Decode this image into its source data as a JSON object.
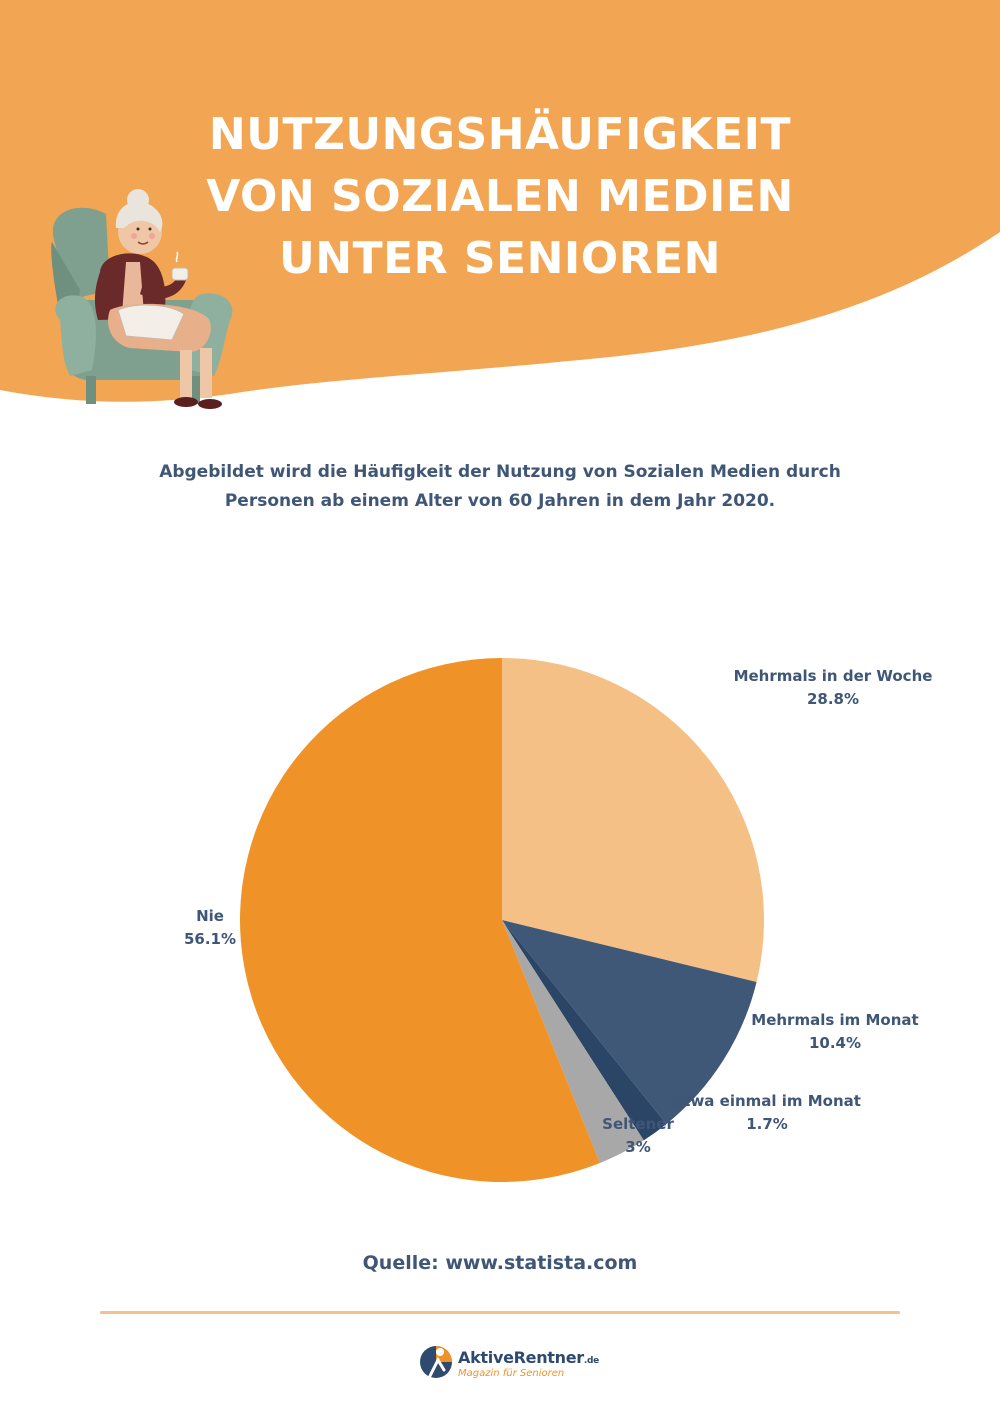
{
  "header": {
    "title_lines": [
      "NUTZUNGSHÄUFIGKEIT",
      "VON SOZIALEN MEDIEN",
      "UNTER SENIOREN"
    ],
    "background_color": "#f2a654"
  },
  "subtitle_lines": [
    "Abgebildet wird die Häufigkeit der Nutzung von Sozialen Medien durch",
    "Personen ab einem Alter von 60 Jahren in dem Jahr 2020."
  ],
  "chart_data": {
    "type": "pie",
    "title": "NUTZUNGSHÄUFIGKEIT VON SOZIALEN MEDIEN UNTER SENIOREN",
    "slices": [
      {
        "label": "Mehrmals in der Woche",
        "value": 28.8,
        "value_label": "28.8%",
        "color": "#f5c085"
      },
      {
        "label": "Mehrmals im Monat",
        "value": 10.4,
        "value_label": "10.4%",
        "color": "#3f5877"
      },
      {
        "label": "Etwa einmal im Monat",
        "value": 1.7,
        "value_label": "1.7%",
        "color": "#2b4566"
      },
      {
        "label": "Seltener",
        "value": 3,
        "value_label": "3%",
        "color": "#a8a8a8"
      },
      {
        "label": "Nie",
        "value": 56.1,
        "value_label": "56.1%",
        "color": "#ef9329"
      }
    ],
    "start": "12 o'clock",
    "direction": "clockwise",
    "legend": "labels outside slices"
  },
  "source": "Quelle: www.statista.com",
  "footer": {
    "logo_name": "AktiveRentner",
    "logo_tld": ".de",
    "logo_tagline": "Magazin für Senioren"
  }
}
